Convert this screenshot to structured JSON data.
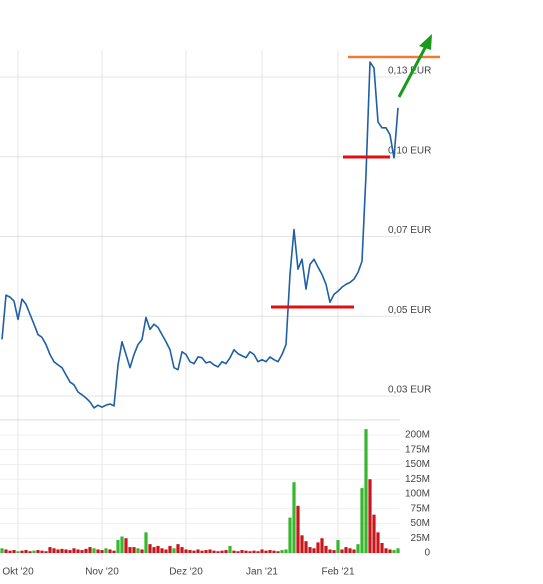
{
  "chart_data": [
    {
      "type": "line",
      "color": "#1f5fa6",
      "values": [
        0.0442,
        0.0553,
        0.0548,
        0.0538,
        0.0492,
        0.0543,
        0.053,
        0.0505,
        0.048,
        0.0454,
        0.0447,
        0.0429,
        0.0404,
        0.0386,
        0.0378,
        0.0371,
        0.0353,
        0.0335,
        0.0328,
        0.031,
        0.0303,
        0.0295,
        0.0285,
        0.027,
        0.0277,
        0.0272,
        0.0277,
        0.028,
        0.0275,
        0.0378,
        0.0436,
        0.0404,
        0.0371,
        0.0404,
        0.0429,
        0.0442,
        0.0497,
        0.0467,
        0.048,
        0.0472,
        0.0454,
        0.0436,
        0.0416,
        0.0371,
        0.0366,
        0.0411,
        0.0404,
        0.0386,
        0.0381,
        0.0398,
        0.0396,
        0.0383,
        0.0386,
        0.0378,
        0.0373,
        0.0386,
        0.0381,
        0.0396,
        0.0416,
        0.0406,
        0.0401,
        0.0396,
        0.0411,
        0.0404,
        0.0386,
        0.0391,
        0.0386,
        0.0398,
        0.0391,
        0.0386,
        0.0404,
        0.0429,
        0.0605,
        0.0726,
        0.0618,
        0.0643,
        0.0568,
        0.063,
        0.0643,
        0.0623,
        0.0605,
        0.058,
        0.0535,
        0.0555,
        0.0563,
        0.0573,
        0.058,
        0.0585,
        0.0593,
        0.061,
        0.0638,
        0.0933,
        0.1356,
        0.1334,
        0.1131,
        0.1109,
        0.1109,
        0.1083,
        0.0996,
        0.1184
      ],
      "ylim": [
        0.024,
        0.14
      ],
      "yticks": [
        {
          "value": 0.03,
          "label": "0,03 EUR"
        },
        {
          "value": 0.05,
          "label": "0,05 EUR"
        },
        {
          "value": 0.07,
          "label": "0,07 EUR"
        },
        {
          "value": 0.1,
          "label": "0,10 EUR"
        },
        {
          "value": 0.13,
          "label": "0,13 EUR"
        }
      ],
      "grid": true
    },
    {
      "type": "bar",
      "categories": [
        null,
        null,
        null,
        null,
        "Okt '20",
        null,
        null,
        null,
        null,
        null,
        null,
        null,
        null,
        null,
        null,
        null,
        null,
        null,
        null,
        null,
        null,
        null,
        null,
        null,
        null,
        "Nov '20",
        null,
        null,
        null,
        null,
        null,
        null,
        null,
        null,
        null,
        null,
        null,
        null,
        null,
        null,
        null,
        null,
        null,
        null,
        null,
        null,
        "Dez '20",
        null,
        null,
        null,
        null,
        null,
        null,
        null,
        null,
        null,
        null,
        null,
        null,
        null,
        null,
        null,
        null,
        null,
        null,
        "Jan '21",
        null,
        null,
        null,
        null,
        null,
        null,
        null,
        null,
        null,
        null,
        null,
        null,
        null,
        null,
        null,
        null,
        null,
        null,
        "Feb '21",
        null,
        null,
        null,
        null,
        null,
        null,
        null,
        null,
        null,
        null,
        null,
        null,
        null,
        null,
        null
      ],
      "values": [
        8,
        6,
        4,
        5,
        3,
        4,
        5,
        3,
        4,
        5,
        4,
        3,
        10,
        8,
        6,
        7,
        6,
        5,
        8,
        6,
        5,
        7,
        10,
        8,
        6,
        5,
        8,
        6,
        4,
        22,
        28,
        25,
        10,
        10,
        8,
        6,
        35,
        15,
        10,
        12,
        8,
        6,
        12,
        8,
        15,
        10,
        6,
        5,
        4,
        6,
        4,
        5,
        6,
        4,
        3,
        4,
        5,
        12,
        4,
        3,
        5,
        4,
        3,
        4,
        3,
        6,
        4,
        5,
        4,
        3,
        5,
        6,
        60,
        120,
        80,
        30,
        20,
        10,
        8,
        18,
        25,
        12,
        6,
        5,
        22,
        6,
        10,
        8,
        6,
        15,
        110,
        210,
        125,
        65,
        35,
        17,
        8,
        6,
        5,
        8
      ],
      "colors": [
        "#35b82e",
        "#c8161d",
        "#c8161d",
        "#c8161d",
        "#35b82e",
        "#c8161d",
        "#c8161d",
        "#c8161d",
        "#35b82e",
        "#c8161d",
        "#c8161d",
        "#c8161d",
        "#c8161d",
        "#c8161d",
        "#c8161d",
        "#c8161d",
        "#c8161d",
        "#c8161d",
        "#c8161d",
        "#c8161d",
        "#c8161d",
        "#c8161d",
        "#c8161d",
        "#35b82e",
        "#c8161d",
        "#c8161d",
        "#35b82e",
        "#c8161d",
        "#c8161d",
        "#35b82e",
        "#35b82e",
        "#c8161d",
        "#c8161d",
        "#c8161d",
        "#35b82e",
        "#c8161d",
        "#35b82e",
        "#c8161d",
        "#c8161d",
        "#c8161d",
        "#c8161d",
        "#c8161d",
        "#c8161d",
        "#35b82e",
        "#c8161d",
        "#c8161d",
        "#c8161d",
        "#c8161d",
        "#c8161d",
        "#c8161d",
        "#c8161d",
        "#c8161d",
        "#c8161d",
        "#c8161d",
        "#c8161d",
        "#c8161d",
        "#c8161d",
        "#35b82e",
        "#c8161d",
        "#c8161d",
        "#c8161d",
        "#c8161d",
        "#c8161d",
        "#c8161d",
        "#c8161d",
        "#c8161d",
        "#c8161d",
        "#c8161d",
        "#c8161d",
        "#c8161d",
        "#35b82e",
        "#35b82e",
        "#35b82e",
        "#35b82e",
        "#c8161d",
        "#c8161d",
        "#c8161d",
        "#c8161d",
        "#c8161d",
        "#c8161d",
        "#c8161d",
        "#c8161d",
        "#c8161d",
        "#c8161d",
        "#35b82e",
        "#c8161d",
        "#c8161d",
        "#c8161d",
        "#c8161d",
        "#35b82e",
        "#35b82e",
        "#35b82e",
        "#c8161d",
        "#c8161d",
        "#c8161d",
        "#c8161d",
        "#c8161d",
        "#c8161d",
        "#35b82e",
        "#35b82e"
      ],
      "ylim": [
        0,
        215
      ],
      "yticks": [
        0,
        {
          "value": 25,
          "label": "25M"
        },
        {
          "value": 50,
          "label": "50M"
        },
        {
          "value": 75,
          "label": "75M"
        },
        {
          "value": 100,
          "label": "100M"
        },
        {
          "value": 125,
          "label": "125M"
        },
        {
          "value": 150,
          "label": "150M"
        },
        {
          "value": 175,
          "label": "175M"
        },
        {
          "value": 200,
          "label": "200M"
        }
      ],
      "grid": true
    }
  ]
}
